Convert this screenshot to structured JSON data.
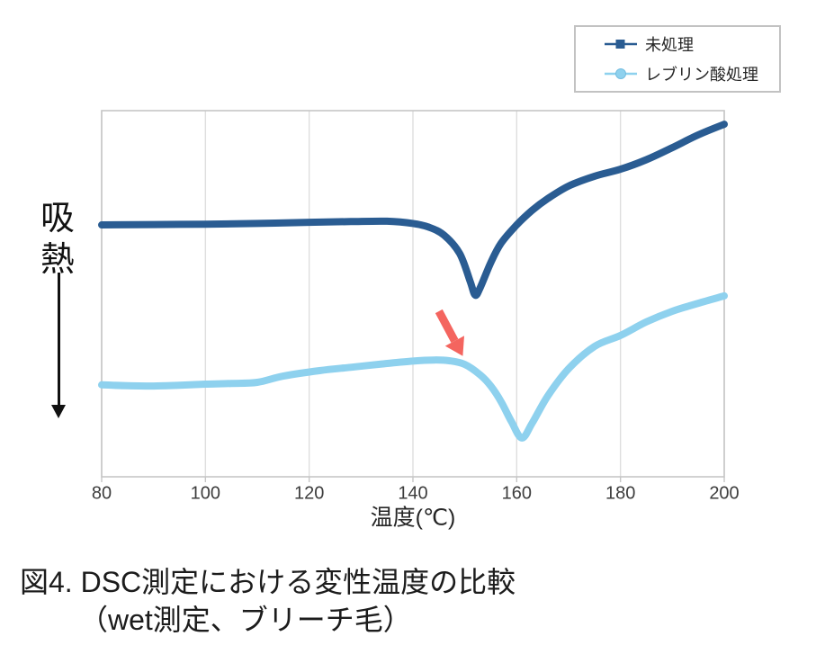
{
  "caption": {
    "line1": "図4. DSC測定における変性温度の比較",
    "line2": "（wet測定、ブリーチ毛）"
  },
  "legend": {
    "items": [
      {
        "label": "未処理",
        "color": "#2a5c92",
        "marker": "square"
      },
      {
        "label": "レブリン酸処理",
        "color": "#8ed1ee",
        "marker": "circle",
        "marker_stroke": "#74bde0"
      }
    ]
  },
  "chart_data": {
    "type": "line",
    "title": "",
    "xlabel": "温度(℃)",
    "ylabel": "吸熱",
    "ylabel_note": "downward arrow indicates endothermic direction",
    "xlim": [
      80,
      200
    ],
    "xticks": [
      "80",
      "100",
      "120",
      "140",
      "160",
      "180",
      "200"
    ],
    "xtick_values": [
      80,
      100,
      120,
      140,
      160,
      180,
      200
    ],
    "ylim": [
      0,
      100
    ],
    "y_units": "arbitrary (heat flow, unlabeled axis)",
    "grid": "vertical-only",
    "legend_position": "top-right",
    "colors": {
      "grid": "#dedede",
      "frame": "#c6c6c6",
      "tick_text": "#3d3d3d",
      "axis_label_text": "#262626",
      "annotation_arrow": "#f4655f"
    },
    "series": [
      {
        "name": "未処理",
        "color": "#2a5c92",
        "line_width": 8,
        "denaturation_dip_temp_c": 152,
        "points": [
          [
            80,
            68.8
          ],
          [
            90,
            68.9
          ],
          [
            100,
            69.0
          ],
          [
            110,
            69.2
          ],
          [
            120,
            69.5
          ],
          [
            128,
            69.7
          ],
          [
            135,
            69.8
          ],
          [
            140,
            69.2
          ],
          [
            143,
            68.2
          ],
          [
            146,
            66.0
          ],
          [
            149,
            61.0
          ],
          [
            151,
            53.5
          ],
          [
            152,
            49.6
          ],
          [
            153,
            51.8
          ],
          [
            155,
            58.5
          ],
          [
            157,
            63.8
          ],
          [
            160,
            68.8
          ],
          [
            163,
            72.8
          ],
          [
            166,
            76.0
          ],
          [
            170,
            79.4
          ],
          [
            175,
            82.1
          ],
          [
            180,
            84.0
          ],
          [
            185,
            86.6
          ],
          [
            190,
            89.9
          ],
          [
            195,
            93.4
          ],
          [
            200,
            96.3
          ]
        ]
      },
      {
        "name": "レブリン酸処理",
        "color": "#8ed1ee",
        "line_width": 8,
        "denaturation_dip_temp_c": 161,
        "points": [
          [
            80,
            25.1
          ],
          [
            85,
            24.9
          ],
          [
            90,
            24.8
          ],
          [
            95,
            25.0
          ],
          [
            100,
            25.3
          ],
          [
            105,
            25.5
          ],
          [
            110,
            25.8
          ],
          [
            115,
            27.5
          ],
          [
            122,
            29.0
          ],
          [
            128,
            29.9
          ],
          [
            134,
            30.8
          ],
          [
            140,
            31.6
          ],
          [
            144,
            31.9
          ],
          [
            147,
            31.7
          ],
          [
            150,
            30.7
          ],
          [
            153,
            27.8
          ],
          [
            155,
            24.8
          ],
          [
            157,
            20.5
          ],
          [
            159,
            15.0
          ],
          [
            161,
            10.6
          ],
          [
            163,
            14.7
          ],
          [
            166,
            22.1
          ],
          [
            170,
            29.5
          ],
          [
            175,
            35.6
          ],
          [
            180,
            38.6
          ],
          [
            185,
            42.3
          ],
          [
            190,
            45.2
          ],
          [
            195,
            47.4
          ],
          [
            200,
            49.4
          ]
        ]
      }
    ],
    "annotations": [
      {
        "type": "arrow",
        "color": "#f4655f",
        "from_x": 145.0,
        "from_y": 45.2,
        "to_x": 149.6,
        "to_y": 33.0
      }
    ]
  }
}
